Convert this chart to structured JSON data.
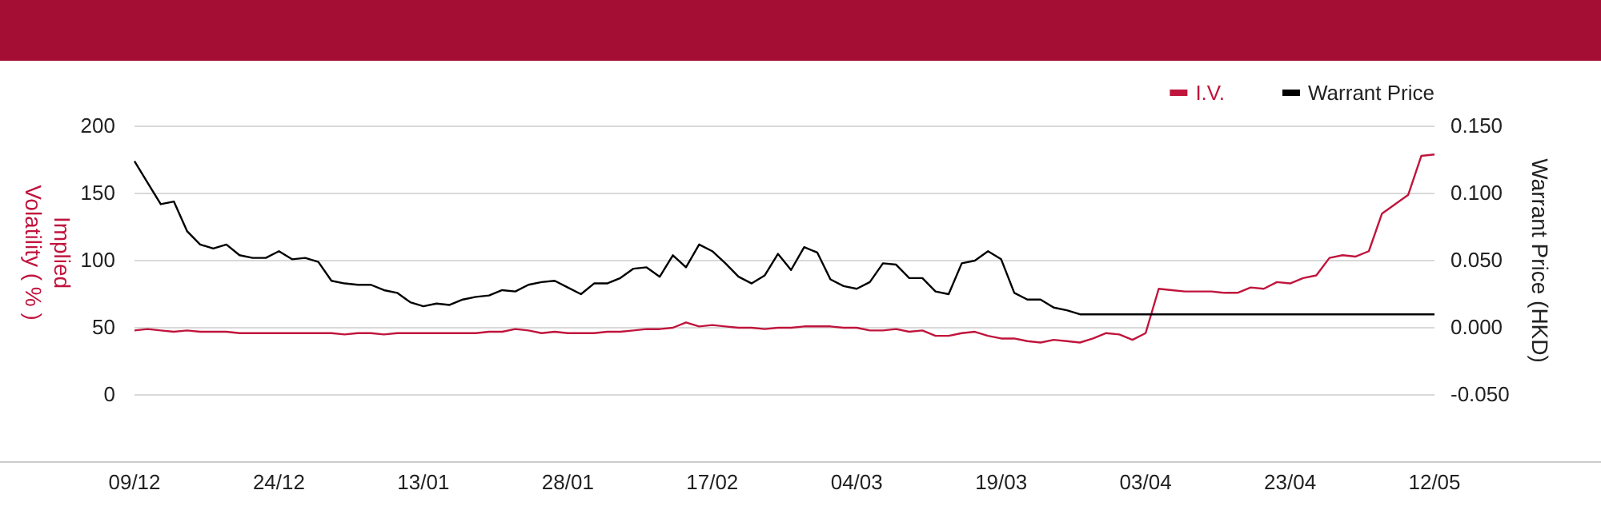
{
  "chart_data": {
    "type": "line",
    "categories": [
      "09/12",
      null,
      null,
      null,
      null,
      null,
      null,
      null,
      null,
      null,
      null,
      "24/12",
      null,
      null,
      null,
      null,
      null,
      null,
      null,
      null,
      null,
      null,
      "13/01",
      null,
      null,
      null,
      null,
      null,
      null,
      null,
      null,
      null,
      null,
      "28/01",
      null,
      null,
      null,
      null,
      null,
      null,
      null,
      null,
      null,
      null,
      "17/02",
      null,
      null,
      null,
      null,
      null,
      null,
      null,
      null,
      null,
      null,
      "04/03",
      null,
      null,
      null,
      null,
      null,
      null,
      null,
      null,
      null,
      null,
      "19/03",
      null,
      null,
      null,
      null,
      null,
      null,
      null,
      null,
      null,
      null,
      "03/04",
      null,
      null,
      null,
      null,
      null,
      null,
      null,
      null,
      null,
      null,
      "23/04",
      null,
      null,
      null,
      null,
      null,
      null,
      null,
      null,
      null,
      null,
      "12/05"
    ],
    "series": [
      {
        "name": "I.V.",
        "color": "#c0143c",
        "axis": "y",
        "values": [
          48,
          49,
          48,
          47,
          48,
          47,
          47,
          47,
          46,
          46,
          46,
          46,
          46,
          46,
          46,
          46,
          45,
          46,
          46,
          45,
          46,
          46,
          46,
          46,
          46,
          46,
          46,
          47,
          47,
          49,
          48,
          46,
          47,
          46,
          46,
          46,
          47,
          47,
          48,
          49,
          49,
          50,
          54,
          51,
          52,
          51,
          50,
          50,
          49,
          50,
          50,
          51,
          51,
          51,
          50,
          50,
          48,
          48,
          49,
          47,
          48,
          44,
          44,
          46,
          47,
          44,
          42,
          42,
          40,
          39,
          41,
          40,
          39,
          42,
          46,
          45,
          41,
          46,
          79,
          78,
          77,
          77,
          77,
          76,
          76,
          80,
          79,
          84,
          83,
          87,
          89,
          102,
          104,
          103,
          107,
          135,
          142,
          149,
          178,
          179
        ]
      },
      {
        "name": "Warrant Price",
        "color": "#000000",
        "axis": "y2",
        "values": [
          0.124,
          0.108,
          0.092,
          0.094,
          0.072,
          0.062,
          0.059,
          0.062,
          0.054,
          0.052,
          0.052,
          0.057,
          0.051,
          0.052,
          0.049,
          0.035,
          0.033,
          0.032,
          0.032,
          0.028,
          0.026,
          0.019,
          0.016,
          0.018,
          0.017,
          0.021,
          0.023,
          0.024,
          0.028,
          0.027,
          0.032,
          0.034,
          0.035,
          0.03,
          0.025,
          0.033,
          0.033,
          0.037,
          0.044,
          0.045,
          0.038,
          0.054,
          0.045,
          0.062,
          0.057,
          0.048,
          0.038,
          0.033,
          0.039,
          0.055,
          0.043,
          0.06,
          0.056,
          0.036,
          0.031,
          0.029,
          0.034,
          0.048,
          0.047,
          0.037,
          0.037,
          0.027,
          0.025,
          0.048,
          0.05,
          0.057,
          0.051,
          0.026,
          0.021,
          0.021,
          0.015,
          0.013,
          0.01,
          0.01,
          0.01,
          0.01,
          0.01,
          0.01,
          0.01,
          0.01,
          0.01,
          0.01,
          0.01,
          0.01,
          0.01,
          0.01,
          0.01,
          0.01,
          0.01,
          0.01,
          0.01,
          0.01,
          0.01,
          0.01,
          0.01,
          0.01,
          0.01,
          0.01,
          0.01,
          0.01
        ]
      }
    ],
    "ylabel": "Implied Volatility ( % )",
    "y2label": "Warrant Price (HKD)",
    "ylim": [
      -50,
      200
    ],
    "yticks": [
      {
        "value": -50,
        "label": null
      },
      0,
      50,
      100,
      150,
      200
    ],
    "y2lim": [
      -0.1,
      0.15
    ],
    "y2ticks": [
      {
        "value": -0.1,
        "label": null
      },
      {
        "value": -0.05,
        "label": "-0.050"
      },
      {
        "value": 0,
        "label": "0.000"
      },
      {
        "value": 0.05,
        "label": "0.050"
      },
      {
        "value": 0.1,
        "label": "0.100"
      },
      {
        "value": 0.15,
        "label": "0.150"
      }
    ],
    "grid": "y",
    "legend": "top right",
    "marker": "none",
    "line_style": "solid"
  }
}
